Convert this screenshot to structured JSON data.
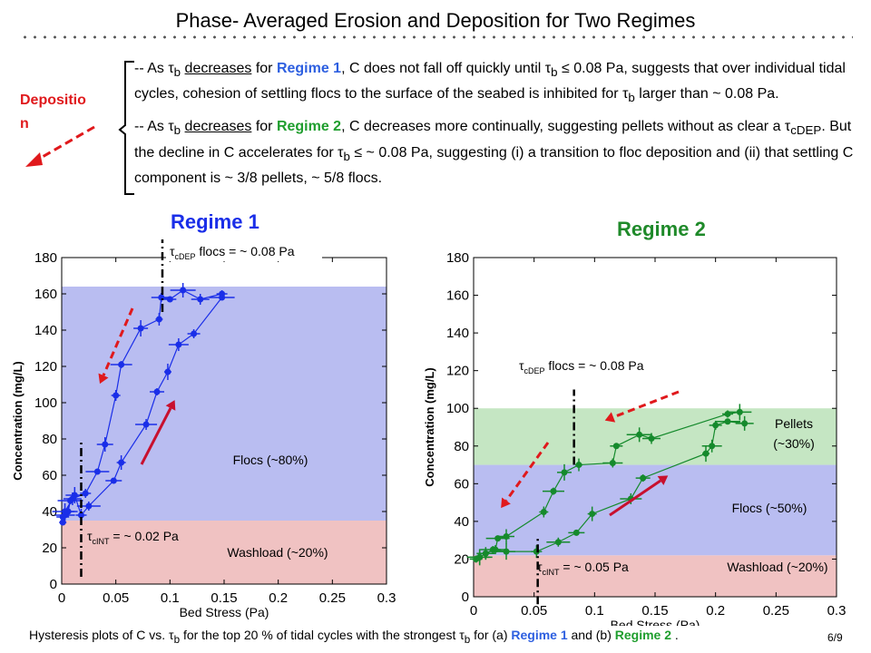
{
  "slide": {
    "title": "Phase- Averaged Erosion and Deposition for Two Regimes",
    "deposition_label": "Depositio n",
    "bullet1": {
      "prefix": "-- As ",
      "tau": "τ",
      "sub": "b",
      "decreases": "decreases",
      "for": " for ",
      "regime": "Regime 1",
      "mid": ", C does not fall off quickly until ",
      "rest": " ≤ 0.08 Pa, suggests that over individual tidal cycles, cohesion of settling flocs to the surface of the seabed is inhibited for ",
      "end": " larger than ~ 0.08 Pa."
    },
    "bullet2": {
      "prefix": "-- As ",
      "decreases": "decreases",
      "for": " for ",
      "regime": "Regime 2",
      "mid": ", C decreases more continually, suggesting pellets without as clear a ",
      "sub_cdep": "cDEP",
      "mid2": ". But the decline in C accelerates for ",
      "end": " ≤ ~ 0.08 Pa, suggesting (i) a transition to floc deposition and (ii) that settling C component is ~ 3/8 pellets, ~ 5/8 flocs."
    },
    "regime1_label": "Regime 1",
    "regime2_label": "Regime 2",
    "caption": {
      "a": "Hysteresis plots of C vs. ",
      "b": " for the top 20 % of tidal cycles with the strongest ",
      "c": " for (a) ",
      "r1": "Regime 1",
      "d": " and (b) ",
      "r2": "Regime 2",
      "e": " ."
    },
    "page_number": "6/9",
    "colors": {
      "regime1": "#2d5fe0",
      "regime2": "#1f9e2e",
      "deposition": "#e0191c",
      "arrow_up": "#c8102e"
    }
  },
  "chart_data": [
    {
      "type": "line",
      "panel": "Regime 1",
      "xlabel": "Bed Stress (Pa)",
      "ylabel": "Concentration (mg/L)",
      "xlim": [
        0,
        0.3
      ],
      "ylim": [
        0,
        180
      ],
      "xticks": [
        "0",
        "0.05",
        "0.1",
        "0.15",
        "0.2",
        "0.25",
        "0.3"
      ],
      "yticks": [
        "0",
        "20",
        "40",
        "60",
        "80",
        "100",
        "120",
        "140",
        "160",
        "180"
      ],
      "bands": [
        {
          "label": "Washload (~20%)",
          "from": 0,
          "to": 35,
          "color": "#f0c2c2"
        },
        {
          "label": "Flocs (~80%)",
          "from": 35,
          "to": 164,
          "color": "#b9bdf1"
        }
      ],
      "vlines": [
        {
          "x": 0.093,
          "label_tau": "τ",
          "label_sub": "cDEP",
          "label_rest": " flocs = ~ 0.08 Pa"
        },
        {
          "x": 0.018,
          "label_tau": "τ",
          "label_sub": "cINT",
          "label_rest": " = ~ 0.02 Pa"
        }
      ],
      "series_color": "#1a2ee8",
      "series": [
        {
          "values": [
            [
              0.001,
              34
            ],
            [
              0.003,
              38
            ],
            [
              0.006,
              40
            ],
            [
              0.008,
              46
            ],
            [
              0.012,
              49
            ],
            [
              0.018,
              38
            ],
            [
              0.025,
              43
            ],
            [
              0.048,
              57
            ],
            [
              0.055,
              67
            ],
            [
              0.078,
              88
            ],
            [
              0.088,
              106
            ],
            [
              0.098,
              117
            ],
            [
              0.108,
              132
            ],
            [
              0.122,
              138
            ],
            [
              0.148,
              158
            ]
          ]
        },
        {
          "values": [
            [
              0.001,
              37
            ],
            [
              0.003,
              40
            ],
            [
              0.01,
              47
            ],
            [
              0.022,
              50
            ],
            [
              0.033,
              62
            ],
            [
              0.04,
              77
            ],
            [
              0.05,
              104
            ],
            [
              0.055,
              121
            ],
            [
              0.073,
              141
            ],
            [
              0.09,
              146
            ],
            [
              0.092,
              158
            ],
            [
              0.1,
              157
            ],
            [
              0.112,
              162
            ],
            [
              0.128,
              157
            ],
            [
              0.148,
              160
            ]
          ]
        }
      ]
    },
    {
      "type": "line",
      "panel": "Regime 2",
      "xlabel": "Bed Stress (Pa)",
      "ylabel": "Concentration (mg/L)",
      "xlim": [
        0,
        0.3
      ],
      "ylim": [
        0,
        180
      ],
      "xticks": [
        "0",
        "0.05",
        "0.1",
        "0.15",
        "0.2",
        "0.25",
        "0.3"
      ],
      "yticks": [
        "0",
        "20",
        "40",
        "60",
        "80",
        "100",
        "120",
        "140",
        "160",
        "180"
      ],
      "bands": [
        {
          "label": "Washload (~20%)",
          "from": 0,
          "to": 22,
          "color": "#f0c2c2"
        },
        {
          "label": "Flocs (~50%)",
          "from": 22,
          "to": 70,
          "color": "#b9bdf1"
        },
        {
          "label": "Pellets (~30%)",
          "from": 70,
          "to": 100,
          "color": "#c5e6c3"
        }
      ],
      "vlines": [
        {
          "x": 0.083,
          "label_tau": "τ",
          "label_sub": "cDEP",
          "label_rest": " flocs = ~ 0.08 Pa"
        },
        {
          "x": 0.053,
          "label_tau": "τ",
          "label_sub": "cINT",
          "label_rest": " = ~ 0.05 Pa"
        }
      ],
      "series_color": "#158a2c",
      "series": [
        {
          "values": [
            [
              0.002,
              20
            ],
            [
              0.005,
              21
            ],
            [
              0.01,
              23
            ],
            [
              0.016,
              25
            ],
            [
              0.027,
              24
            ],
            [
              0.052,
              24
            ],
            [
              0.07,
              29
            ],
            [
              0.085,
              34
            ],
            [
              0.098,
              44
            ],
            [
              0.13,
              52
            ],
            [
              0.14,
              63
            ],
            [
              0.192,
              76
            ],
            [
              0.197,
              80
            ],
            [
              0.2,
              91
            ],
            [
              0.21,
              93
            ],
            [
              0.224,
              92
            ]
          ]
        },
        {
          "values": [
            [
              0.002,
              20
            ],
            [
              0.005,
              21
            ],
            [
              0.01,
              23
            ],
            [
              0.018,
              25
            ],
            [
              0.02,
              31
            ],
            [
              0.027,
              32
            ],
            [
              0.058,
              45
            ],
            [
              0.066,
              56
            ],
            [
              0.075,
              66
            ],
            [
              0.087,
              70
            ],
            [
              0.115,
              71
            ],
            [
              0.118,
              80
            ],
            [
              0.137,
              86
            ],
            [
              0.147,
              84
            ],
            [
              0.21,
              97
            ],
            [
              0.22,
              98
            ]
          ]
        }
      ]
    }
  ]
}
